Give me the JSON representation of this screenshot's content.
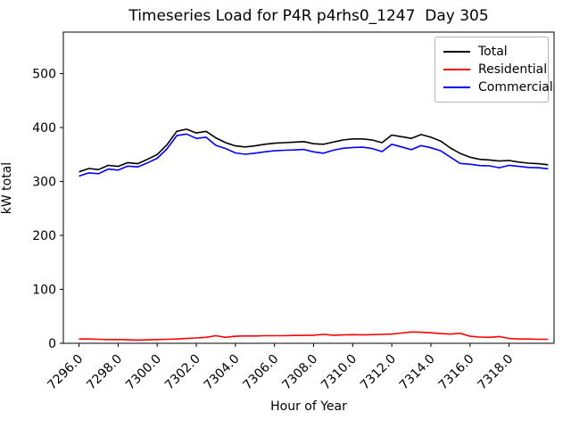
{
  "chart_data": {
    "type": "line",
    "title": "Timeseries Load for P4R p4rhs0_1247  Day 305",
    "xlabel": "Hour of Year",
    "ylabel": "kW total",
    "x": [
      7296,
      7296.5,
      7297,
      7297.5,
      7298,
      7298.5,
      7299,
      7299.5,
      7300,
      7300.5,
      7301,
      7301.5,
      7302,
      7302.5,
      7303,
      7303.5,
      7304,
      7304.5,
      7305,
      7305.5,
      7306,
      7306.5,
      7307,
      7307.5,
      7308,
      7308.5,
      7309,
      7309.5,
      7310,
      7310.5,
      7311,
      7311.5,
      7312,
      7312.5,
      7313,
      7313.5,
      7314,
      7314.5,
      7315,
      7315.5,
      7316,
      7316.5,
      7317,
      7317.5,
      7318,
      7318.5,
      7319,
      7319.5,
      7320
    ],
    "series": [
      {
        "name": "Total",
        "color": "#000000",
        "values": [
          318,
          324,
          322,
          330,
          328,
          335,
          333,
          341,
          350,
          368,
          393,
          397,
          390,
          393,
          381,
          372,
          366,
          364,
          366,
          369,
          371,
          372,
          373,
          374,
          370,
          369,
          373,
          377,
          379,
          379,
          377,
          372,
          386,
          383,
          380,
          387,
          382,
          375,
          362,
          352,
          345,
          341,
          340,
          338,
          339,
          336,
          334,
          333,
          331
        ]
      },
      {
        "name": "Residential",
        "color": "#ff0000",
        "values": [
          8,
          8,
          7.5,
          7,
          7,
          6.5,
          6,
          6.5,
          7,
          7.5,
          8,
          9,
          10,
          11,
          14,
          11,
          13,
          13.5,
          13.5,
          14,
          14,
          14,
          14.5,
          14.5,
          15,
          16.5,
          15,
          15.5,
          16,
          15.5,
          16,
          16.5,
          17,
          19,
          21,
          20.5,
          19.5,
          18,
          17,
          18.5,
          13,
          11.5,
          11,
          12.5,
          9,
          8,
          8,
          7.5,
          7.5
        ]
      },
      {
        "name": "Commercial",
        "color": "#0000ff",
        "values": [
          310,
          316,
          314.5,
          323,
          321,
          328.5,
          327,
          334.5,
          343,
          360.5,
          385,
          388,
          380,
          382,
          367,
          361,
          353,
          350.5,
          352.5,
          355,
          357,
          358,
          358.5,
          359.5,
          355,
          352.5,
          358,
          361.5,
          363,
          363.5,
          361,
          355.5,
          369,
          364,
          359,
          366.5,
          362.5,
          357,
          345,
          333.5,
          332,
          329.5,
          329,
          325.5,
          330,
          328,
          326,
          325.5,
          323.5
        ]
      }
    ],
    "xlim": [
      7295.2,
      7320.3
    ],
    "ylim": [
      0,
      577
    ],
    "xticks": [
      7296,
      7298,
      7300,
      7302,
      7304,
      7306,
      7308,
      7310,
      7312,
      7314,
      7316,
      7318
    ],
    "xtick_labels": [
      "7296.0",
      "7298.0",
      "7300.0",
      "7302.0",
      "7304.0",
      "7306.0",
      "7308.0",
      "7310.0",
      "7312.0",
      "7314.0",
      "7316.0",
      "7318.0"
    ],
    "yticks": [
      0,
      100,
      200,
      300,
      400,
      500
    ],
    "ytick_labels": [
      "0",
      "100",
      "200",
      "300",
      "400",
      "500"
    ],
    "grid": false,
    "legend_position": "upper right",
    "xtick_rotation_deg": 45
  }
}
